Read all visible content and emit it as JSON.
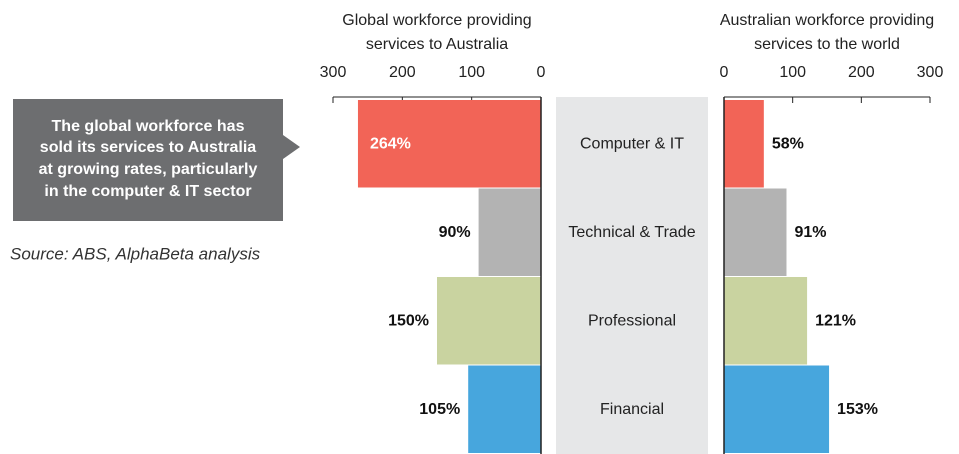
{
  "callout": [
    "The global workforce has",
    "sold its services to Australia",
    "at growing rates, particularly",
    "in the computer & IT sector"
  ],
  "source": "Source: ABS, AlphaBeta analysis",
  "chart_data": [
    {
      "type": "bar",
      "title": [
        "Global workforce providing",
        "services to Australia"
      ],
      "categories": [
        "Computer & IT",
        "Technical & Trade",
        "Professional",
        "Financial"
      ],
      "values": [
        264,
        90,
        150,
        105
      ],
      "value_labels": [
        "264%",
        "90%",
        "150%",
        "105%"
      ],
      "colors": [
        "#f26457",
        "#b3b3b3",
        "#c9d3a0",
        "#47a6dd"
      ],
      "xlim": [
        300,
        0
      ],
      "xticks": [
        300,
        200,
        100,
        0
      ]
    },
    {
      "type": "bar",
      "title": [
        "Australian workforce providing",
        "services to the world"
      ],
      "values": [
        58,
        91,
        121,
        153
      ],
      "value_labels": [
        "58%",
        "91%",
        "121%",
        "153%"
      ],
      "colors": [
        "#f26457",
        "#b3b3b3",
        "#c9d3a0",
        "#47a6dd"
      ],
      "xlim": [
        0,
        300
      ],
      "xticks": [
        0,
        100,
        200,
        300
      ]
    }
  ]
}
